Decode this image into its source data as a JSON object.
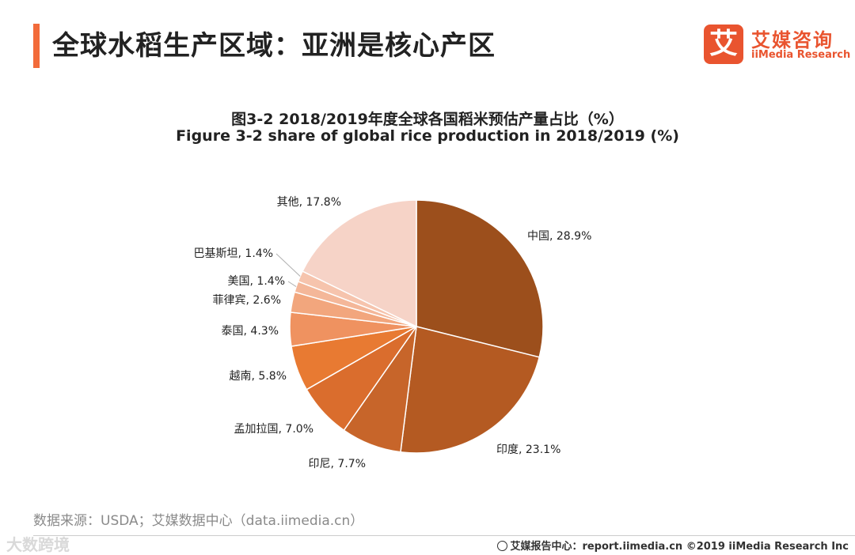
{
  "header": {
    "title": "全球水稻生产区域：亚洲是核心产区",
    "accent_color": "#f26b3a"
  },
  "logo": {
    "mark": "艾",
    "name_cn": "艾媒咨询",
    "name_en": "iiMedia Research",
    "color": "#e9542f"
  },
  "chart_data": {
    "type": "pie",
    "title": "图3-2 2018/2019年度全球各国稻米预估产量占比（%）",
    "subtitle": "Figure 3-2 share of global rice production in 2018/2019 (%)",
    "unit": "%",
    "start": "12 o'clock, clockwise",
    "slices": [
      {
        "label": "中国",
        "value": 28.9,
        "text": "中国, 28.9%",
        "color": "#9c4f1c"
      },
      {
        "label": "印度",
        "value": 23.1,
        "text": "印度, 23.1%",
        "color": "#b45a22"
      },
      {
        "label": "印尼",
        "value": 7.7,
        "text": "印尼, 7.7%",
        "color": "#c7652a"
      },
      {
        "label": "孟加拉国",
        "value": 7.0,
        "text": "孟加拉国, 7.0%",
        "color": "#da6d2d"
      },
      {
        "label": "越南",
        "value": 5.8,
        "text": "越南, 5.8%",
        "color": "#e87a32"
      },
      {
        "label": "泰国",
        "value": 4.3,
        "text": "泰国, 4.3%",
        "color": "#ef9260"
      },
      {
        "label": "菲律宾",
        "value": 2.6,
        "text": "菲律宾, 2.6%",
        "color": "#f2a67d"
      },
      {
        "label": "美国",
        "value": 1.4,
        "text": "美国, 1.4%",
        "color": "#f4b799"
      },
      {
        "label": "巴基斯坦",
        "value": 1.4,
        "text": "巴基斯坦, 1.4%",
        "color": "#f6c4ad"
      },
      {
        "label": "其他",
        "value": 17.8,
        "text": "其他, 17.8%",
        "color": "#f6d3c7"
      }
    ]
  },
  "source": {
    "text": "数据来源：USDA；艾媒数据中心（data.iimedia.cn）"
  },
  "footer": {
    "watermark": "大数跨境",
    "credit": "艾媒报告中心：report.iimedia.cn  ©2019  iiMedia Research  Inc"
  }
}
